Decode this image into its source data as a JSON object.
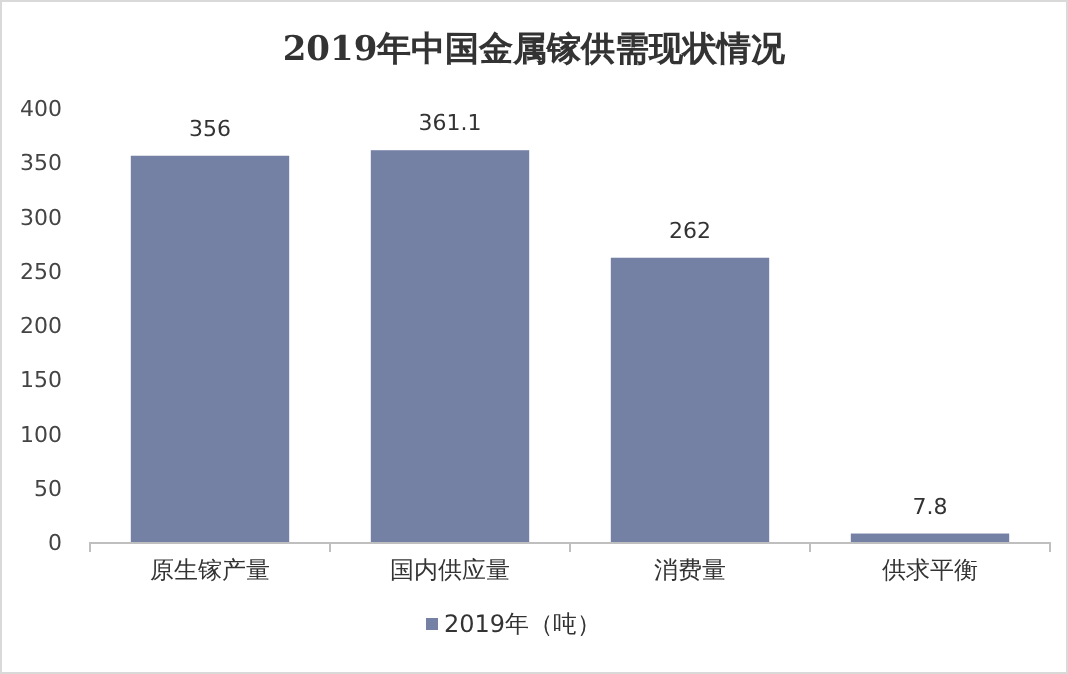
{
  "chart_data": {
    "type": "bar",
    "title": "2019年中国金属镓供需现状情况",
    "categories": [
      "原生镓产量",
      "国内供应量",
      "消费量",
      "供求平衡"
    ],
    "series": [
      {
        "name": "2019年（吨）",
        "color": "#7580a5",
        "values": [
          356,
          361.1,
          262,
          7.8
        ]
      }
    ],
    "ylim": [
      0,
      400
    ],
    "yticks": [
      0,
      50,
      100,
      150,
      200,
      250,
      300,
      350,
      400
    ],
    "data_labels": true,
    "legend": "bottom",
    "grid": false
  }
}
